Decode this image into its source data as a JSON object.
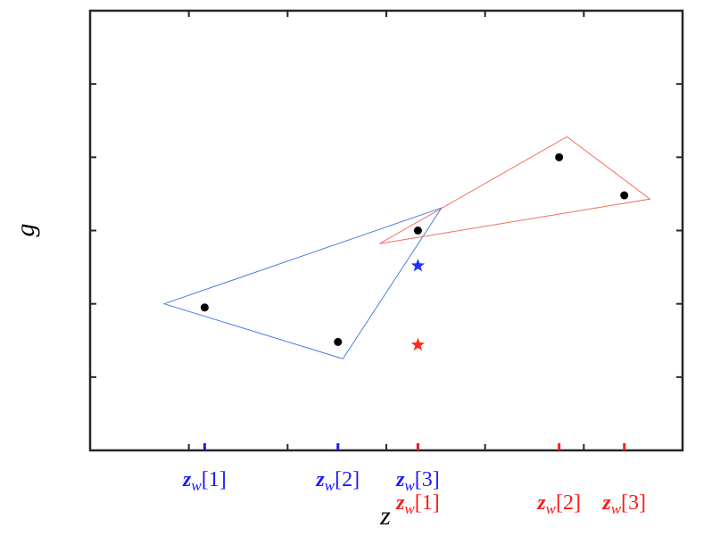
{
  "chart_data": {
    "type": "scatter",
    "x_label": "z",
    "y_label": "g",
    "xlim": [
      0,
      6
    ],
    "ylim": [
      0,
      6
    ],
    "xticks": [
      1,
      2,
      3,
      4,
      5
    ],
    "yticks": [
      1,
      2,
      3,
      4,
      5
    ],
    "points": {
      "color": "#000000",
      "x": [
        1.16,
        2.51,
        3.32,
        4.75,
        5.41
      ],
      "y": [
        1.95,
        1.48,
        3.0,
        4.0,
        3.48
      ]
    },
    "stars": [
      {
        "color": "#1a33ff",
        "x": 3.32,
        "y": 2.52
      },
      {
        "color": "#ff2a1a",
        "x": 3.32,
        "y": 1.44
      }
    ],
    "triangles": [
      {
        "color": "#4a7fe0",
        "x": [
          0.75,
          2.56,
          3.56
        ],
        "y": [
          2.0,
          1.25,
          3.31
        ]
      },
      {
        "color": "#f07060",
        "x": [
          2.93,
          4.83,
          5.67
        ],
        "y": [
          2.82,
          4.28,
          3.43
        ]
      }
    ],
    "markers": [
      {
        "color": "#1a1aff",
        "x": [
          1.16,
          2.51,
          3.32
        ],
        "labels": [
          {
            "base": "z",
            "sub": "w",
            "index": "[1]"
          },
          {
            "base": "z",
            "sub": "w",
            "index": "[2]"
          },
          {
            "base": "z",
            "sub": "w",
            "index": "[3]"
          }
        ]
      },
      {
        "color": "#ff1a1a",
        "x": [
          3.32,
          4.75,
          5.41
        ],
        "labels": [
          {
            "base": "z",
            "sub": "w",
            "index": "[1]"
          },
          {
            "base": "z",
            "sub": "w",
            "index": "[2]"
          },
          {
            "base": "z",
            "sub": "w",
            "index": "[3]"
          }
        ]
      }
    ]
  }
}
